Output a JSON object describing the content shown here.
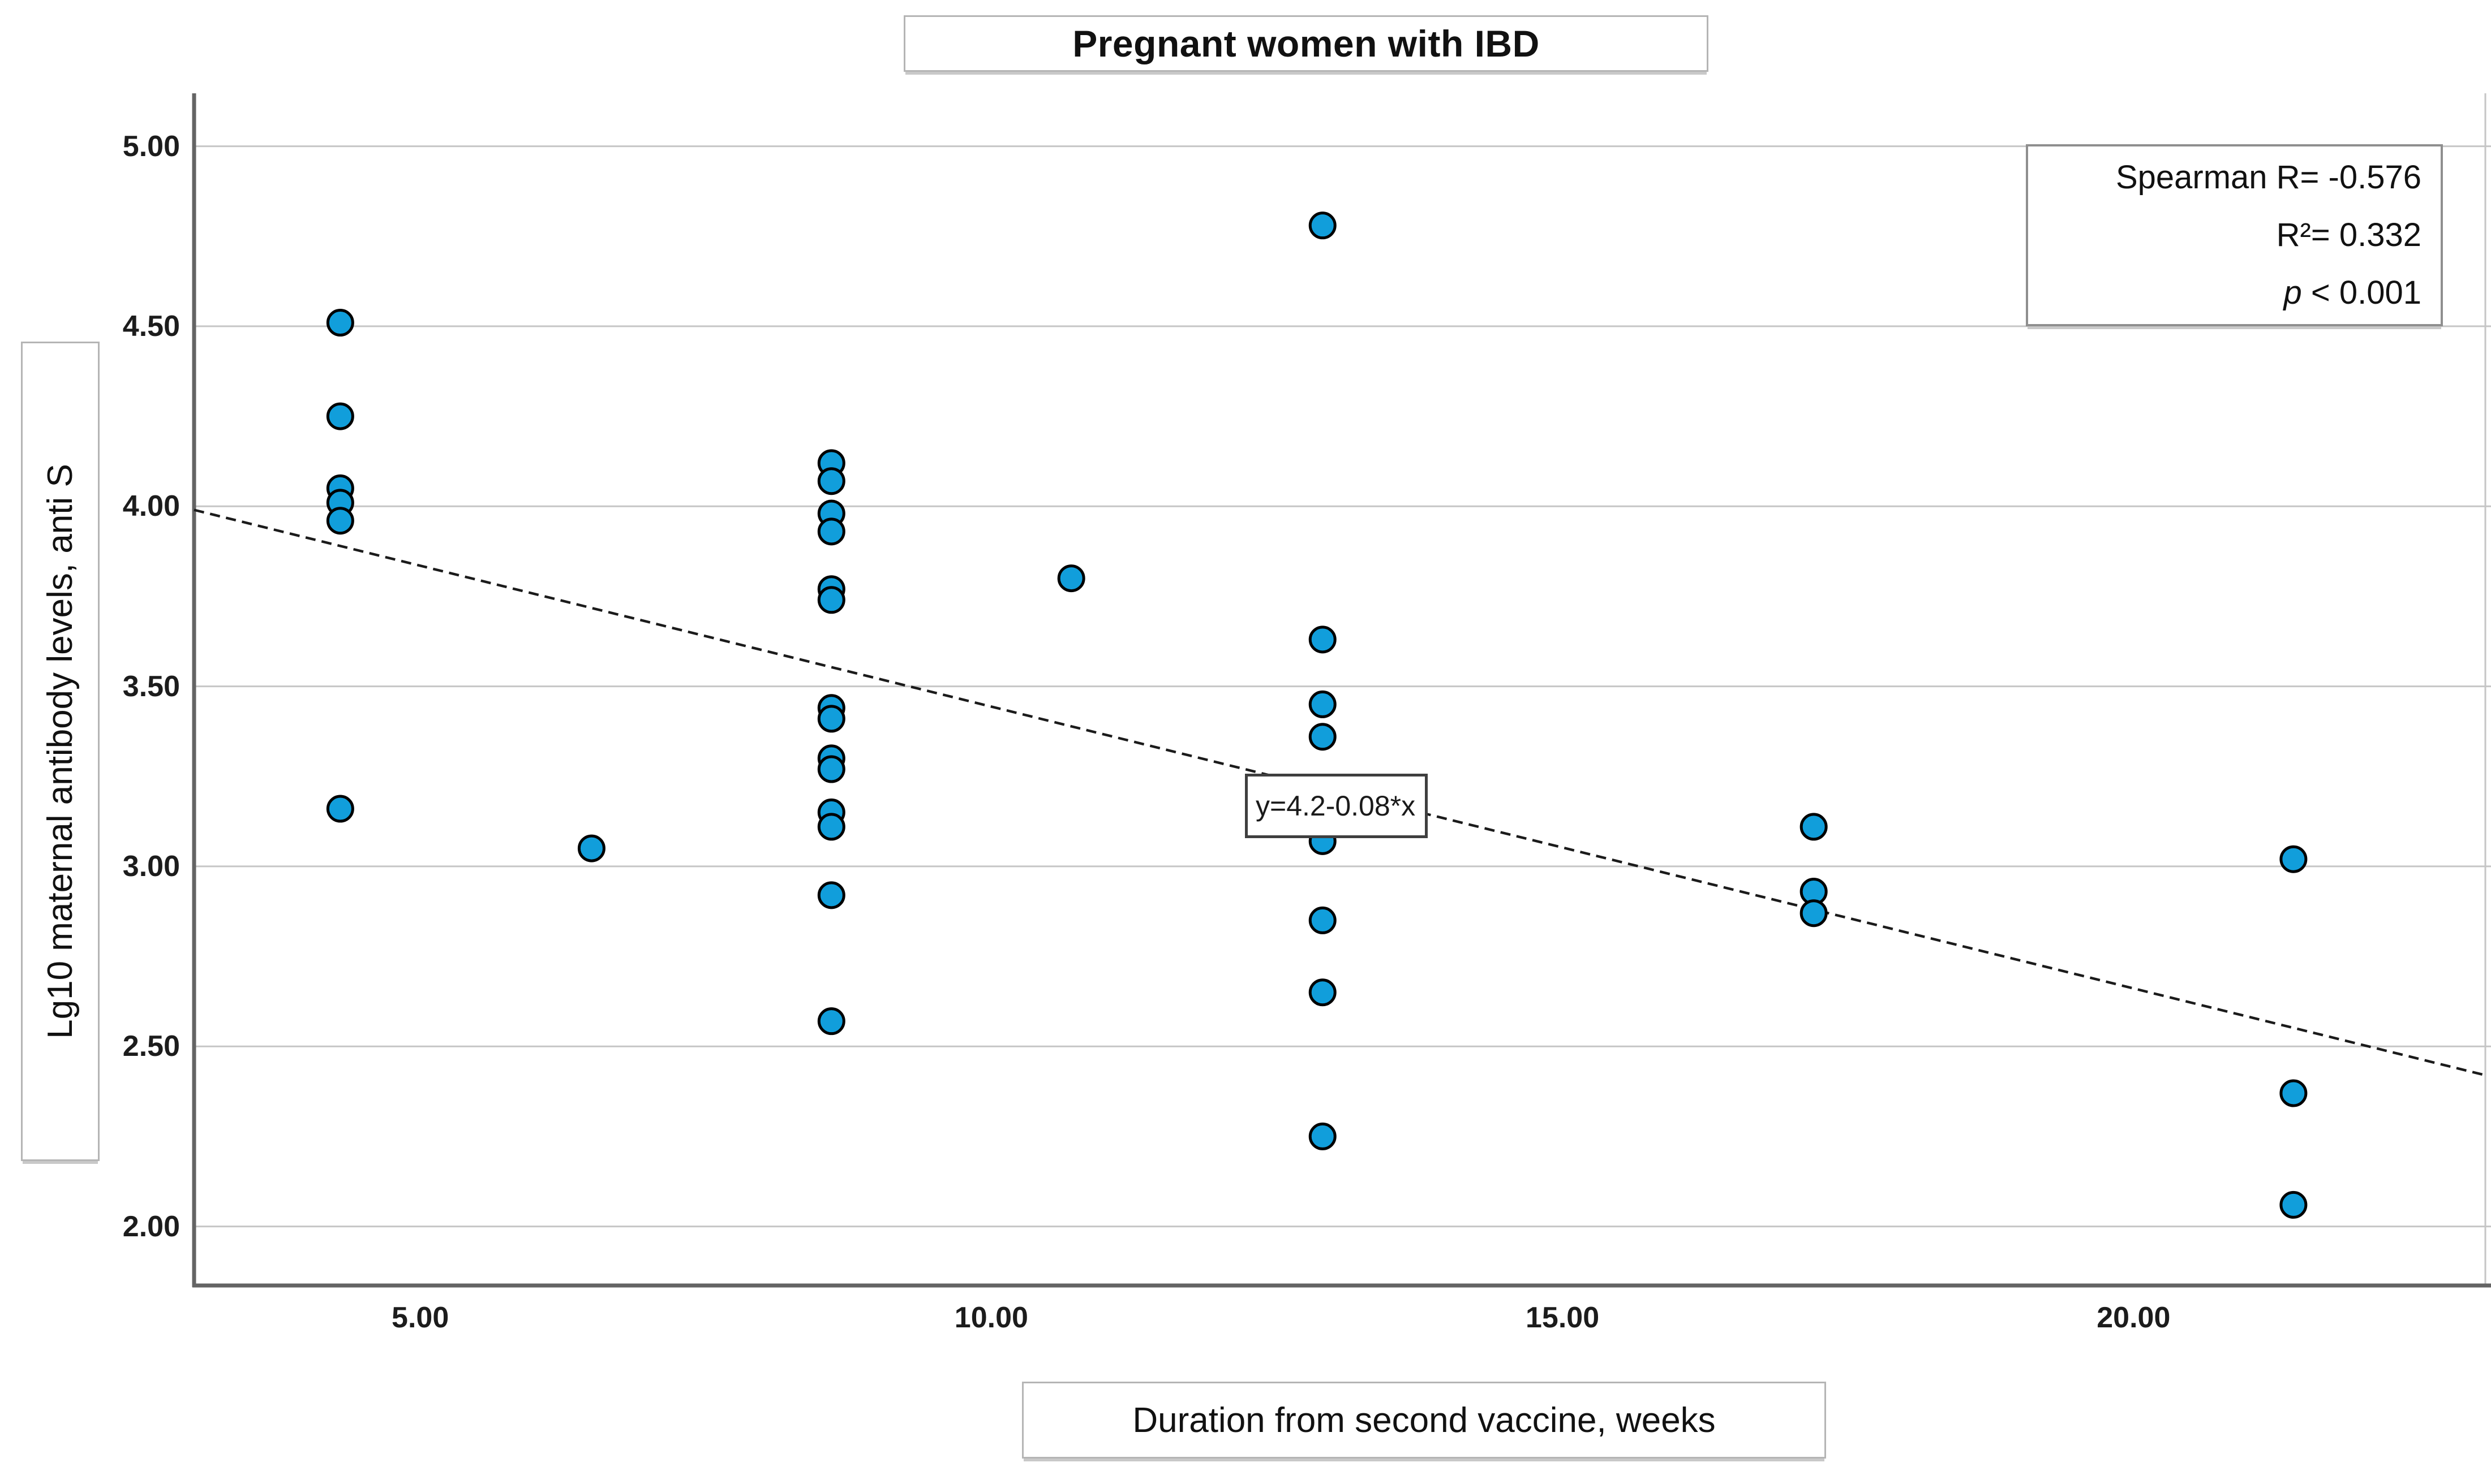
{
  "title": "Pregnant women with IBD",
  "stats": {
    "line1": "Spearman R= -0.576",
    "line2": "R²= 0.332",
    "p_label": "p",
    "p_value": " < 0.001"
  },
  "chart_data": {
    "type": "scatter",
    "title": "Pregnant women with IBD",
    "xlabel": "Duration from second vaccine, weeks",
    "ylabel": "Lg10 maternal antibody levels, anti S",
    "xlim": [
      3.02,
      23.08
    ],
    "ylim": [
      1.836,
      5.147
    ],
    "x_ticks": [
      5.0,
      10.0,
      15.0,
      20.0
    ],
    "x_tick_labels": [
      "5.00",
      "10.00",
      "15.00",
      "20.00"
    ],
    "y_ticks": [
      5.0,
      4.5,
      4.0,
      3.5,
      3.0,
      2.5,
      2.0
    ],
    "y_tick_labels": [
      "5.00",
      "4.50",
      "4.00",
      "3.50",
      "3.00",
      "2.50",
      "2.00"
    ],
    "grid": "horizontal",
    "legend": "none",
    "marker_color": "#119EDB",
    "marker_edge_color": "#000000",
    "grid_color": "#c6c6c6",
    "axis_color": "#646464",
    "points": [
      [
        4.3,
        4.51
      ],
      [
        4.3,
        4.25
      ],
      [
        4.3,
        4.05
      ],
      [
        4.3,
        4.01
      ],
      [
        4.3,
        3.96
      ],
      [
        4.3,
        3.16
      ],
      [
        6.5,
        3.05
      ],
      [
        8.6,
        4.12
      ],
      [
        8.6,
        4.07
      ],
      [
        8.6,
        3.98
      ],
      [
        8.6,
        3.93
      ],
      [
        8.6,
        3.77
      ],
      [
        8.6,
        3.74
      ],
      [
        8.6,
        3.44
      ],
      [
        8.6,
        3.41
      ],
      [
        8.6,
        3.3
      ],
      [
        8.6,
        3.27
      ],
      [
        8.6,
        3.15
      ],
      [
        8.6,
        3.11
      ],
      [
        8.6,
        2.92
      ],
      [
        8.6,
        2.57
      ],
      [
        10.7,
        3.8
      ],
      [
        12.9,
        4.78
      ],
      [
        12.9,
        3.63
      ],
      [
        12.9,
        3.45
      ],
      [
        12.9,
        3.36
      ],
      [
        12.9,
        3.07
      ],
      [
        12.9,
        2.85
      ],
      [
        12.9,
        2.65
      ],
      [
        12.9,
        2.25
      ],
      [
        17.2,
        3.11
      ],
      [
        17.2,
        2.93
      ],
      [
        17.2,
        2.87
      ],
      [
        21.4,
        3.02
      ],
      [
        21.4,
        2.37
      ],
      [
        21.4,
        2.06
      ]
    ],
    "fit_line": {
      "label": "y=4.2-0.08*x",
      "x1": 3.02,
      "y1": 3.99,
      "x2": 23.08,
      "y2": 2.42
    }
  }
}
